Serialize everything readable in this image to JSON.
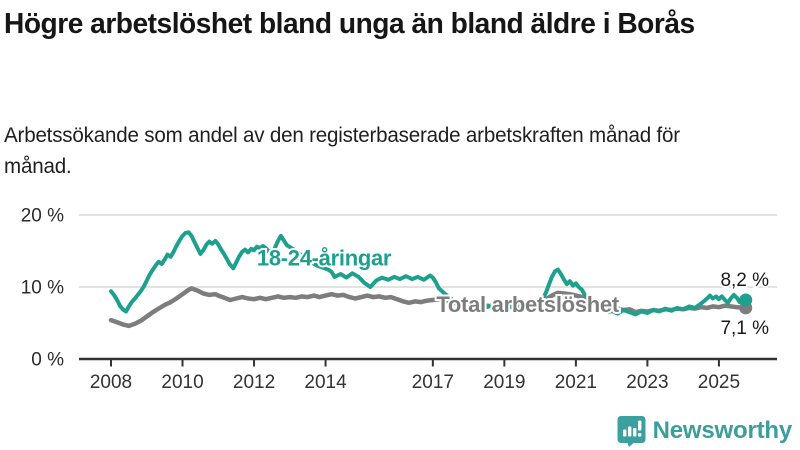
{
  "header": {
    "title": "Högre arbetslöshet bland unga än bland äldre i Borås",
    "subtitle": "Arbetssökande som andel av den registerbaserade arbetskraften månad för månad."
  },
  "footer": {
    "brand": "Newsworthy"
  },
  "colors": {
    "accent_teal": "#1ea08e",
    "total_gray": "#7d7d7d",
    "axis": "#333333",
    "grid": "#d9d9d9",
    "label_text": "#1a1a1a",
    "logo_teal": "#3ba09e"
  },
  "chart_data": {
    "type": "line",
    "unit": "%",
    "grid": "horizontal",
    "x_axis": {
      "ticks": [
        {
          "year": 2008,
          "label": "2008"
        },
        {
          "year": 2010,
          "label": "2010"
        },
        {
          "year": 2012,
          "label": "2012"
        },
        {
          "year": 2014,
          "label": "2014"
        },
        {
          "year": 2017,
          "label": "2017"
        },
        {
          "year": 2019,
          "label": "2019"
        },
        {
          "year": 2021,
          "label": "2021"
        },
        {
          "year": 2023,
          "label": "2023"
        },
        {
          "year": 2025,
          "label": "2025"
        }
      ],
      "range": [
        2008,
        2025.75
      ]
    },
    "y_axis": {
      "ticks": [
        {
          "value": 0,
          "label": "0 %"
        },
        {
          "value": 10,
          "label": "10 %"
        },
        {
          "value": 20,
          "label": "20 %"
        }
      ],
      "range": [
        0,
        20
      ]
    },
    "series": [
      {
        "id": "total",
        "name": "Total arbetslöshet",
        "color": "#7d7d7d",
        "line_width": 4.5,
        "label_anchor": {
          "t": 2017.1,
          "v": 6.5
        },
        "end_label": "7,1 %",
        "end_label_side": "below",
        "end_value": 7.1,
        "points": [
          [
            2008.0,
            5.4
          ],
          [
            2008.17,
            5.1
          ],
          [
            2008.33,
            4.8
          ],
          [
            2008.5,
            4.6
          ],
          [
            2008.67,
            4.9
          ],
          [
            2008.83,
            5.3
          ],
          [
            2009.0,
            5.9
          ],
          [
            2009.17,
            6.5
          ],
          [
            2009.33,
            7.0
          ],
          [
            2009.5,
            7.5
          ],
          [
            2009.67,
            7.9
          ],
          [
            2009.83,
            8.4
          ],
          [
            2010.0,
            9.0
          ],
          [
            2010.17,
            9.6
          ],
          [
            2010.25,
            9.8
          ],
          [
            2010.42,
            9.5
          ],
          [
            2010.58,
            9.1
          ],
          [
            2010.75,
            8.9
          ],
          [
            2010.92,
            9.0
          ],
          [
            2011.0,
            8.8
          ],
          [
            2011.17,
            8.5
          ],
          [
            2011.33,
            8.2
          ],
          [
            2011.5,
            8.4
          ],
          [
            2011.67,
            8.6
          ],
          [
            2011.83,
            8.4
          ],
          [
            2012.0,
            8.3
          ],
          [
            2012.17,
            8.5
          ],
          [
            2012.33,
            8.3
          ],
          [
            2012.5,
            8.5
          ],
          [
            2012.67,
            8.7
          ],
          [
            2012.83,
            8.5
          ],
          [
            2013.0,
            8.6
          ],
          [
            2013.17,
            8.5
          ],
          [
            2013.33,
            8.7
          ],
          [
            2013.5,
            8.6
          ],
          [
            2013.67,
            8.8
          ],
          [
            2013.83,
            8.6
          ],
          [
            2014.0,
            8.8
          ],
          [
            2014.17,
            9.0
          ],
          [
            2014.33,
            8.8
          ],
          [
            2014.5,
            8.9
          ],
          [
            2014.67,
            8.6
          ],
          [
            2014.83,
            8.4
          ],
          [
            2015.0,
            8.6
          ],
          [
            2015.17,
            8.8
          ],
          [
            2015.33,
            8.6
          ],
          [
            2015.5,
            8.7
          ],
          [
            2015.67,
            8.5
          ],
          [
            2015.83,
            8.6
          ],
          [
            2016.0,
            8.3
          ],
          [
            2016.17,
            8.0
          ],
          [
            2016.33,
            7.8
          ],
          [
            2016.5,
            8.0
          ],
          [
            2016.67,
            7.9
          ],
          [
            2016.83,
            8.1
          ],
          [
            2017.0,
            8.2
          ],
          [
            2017.17,
            8.3
          ],
          [
            2017.33,
            8.1
          ],
          [
            2017.5,
            8.0
          ],
          [
            2017.67,
            7.9
          ],
          [
            2017.83,
            7.8
          ],
          [
            2018.0,
            7.7
          ],
          [
            2018.25,
            7.5
          ],
          [
            2018.5,
            7.4
          ],
          [
            2018.75,
            7.3
          ],
          [
            2019.0,
            7.4
          ],
          [
            2019.25,
            7.5
          ],
          [
            2019.5,
            7.4
          ],
          [
            2019.75,
            7.6
          ],
          [
            2020.0,
            7.8
          ],
          [
            2020.17,
            8.3
          ],
          [
            2020.33,
            8.8
          ],
          [
            2020.5,
            9.2
          ],
          [
            2020.67,
            9.1
          ],
          [
            2020.83,
            9.0
          ],
          [
            2021.0,
            8.8
          ],
          [
            2021.17,
            8.6
          ],
          [
            2021.33,
            8.3
          ],
          [
            2021.5,
            8.0
          ],
          [
            2021.67,
            7.7
          ],
          [
            2021.83,
            7.4
          ],
          [
            2022.0,
            7.2
          ],
          [
            2022.17,
            7.0
          ],
          [
            2022.33,
            6.8
          ],
          [
            2022.5,
            6.9
          ],
          [
            2022.67,
            6.5
          ],
          [
            2022.83,
            6.7
          ],
          [
            2023.0,
            6.6
          ],
          [
            2023.17,
            6.8
          ],
          [
            2023.33,
            6.7
          ],
          [
            2023.5,
            6.9
          ],
          [
            2023.67,
            6.8
          ],
          [
            2023.83,
            7.0
          ],
          [
            2024.0,
            6.9
          ],
          [
            2024.17,
            7.1
          ],
          [
            2024.33,
            7.0
          ],
          [
            2024.5,
            7.2
          ],
          [
            2024.67,
            7.1
          ],
          [
            2024.83,
            7.3
          ],
          [
            2025.0,
            7.2
          ],
          [
            2025.17,
            7.4
          ],
          [
            2025.33,
            7.3
          ],
          [
            2025.5,
            7.2
          ],
          [
            2025.75,
            7.1
          ]
        ]
      },
      {
        "id": "youth",
        "name": "18-24-åringar",
        "color": "#1ea08e",
        "line_width": 4,
        "label_anchor": {
          "t": 2012.08,
          "v": 13.0
        },
        "end_label": "8,2 %",
        "end_label_side": "above",
        "end_value": 8.2,
        "points": [
          [
            2008.0,
            9.4
          ],
          [
            2008.08,
            8.9
          ],
          [
            2008.17,
            8.2
          ],
          [
            2008.25,
            7.4
          ],
          [
            2008.33,
            6.9
          ],
          [
            2008.42,
            6.6
          ],
          [
            2008.5,
            7.3
          ],
          [
            2008.58,
            7.9
          ],
          [
            2008.67,
            8.4
          ],
          [
            2008.75,
            8.9
          ],
          [
            2008.83,
            9.4
          ],
          [
            2008.92,
            10.1
          ],
          [
            2009.0,
            10.9
          ],
          [
            2009.08,
            11.7
          ],
          [
            2009.17,
            12.4
          ],
          [
            2009.25,
            13.0
          ],
          [
            2009.33,
            13.5
          ],
          [
            2009.42,
            13.2
          ],
          [
            2009.5,
            13.8
          ],
          [
            2009.58,
            14.5
          ],
          [
            2009.67,
            14.2
          ],
          [
            2009.75,
            14.9
          ],
          [
            2009.83,
            15.7
          ],
          [
            2009.92,
            16.5
          ],
          [
            2010.0,
            17.1
          ],
          [
            2010.08,
            17.5
          ],
          [
            2010.17,
            17.6
          ],
          [
            2010.25,
            17.1
          ],
          [
            2010.33,
            16.3
          ],
          [
            2010.42,
            15.4
          ],
          [
            2010.5,
            14.6
          ],
          [
            2010.58,
            15.1
          ],
          [
            2010.67,
            15.9
          ],
          [
            2010.75,
            16.3
          ],
          [
            2010.83,
            16.0
          ],
          [
            2010.92,
            16.4
          ],
          [
            2011.0,
            15.9
          ],
          [
            2011.08,
            15.2
          ],
          [
            2011.17,
            14.5
          ],
          [
            2011.25,
            13.8
          ],
          [
            2011.33,
            13.1
          ],
          [
            2011.42,
            12.6
          ],
          [
            2011.5,
            13.4
          ],
          [
            2011.58,
            14.2
          ],
          [
            2011.67,
            14.9
          ],
          [
            2011.75,
            15.2
          ],
          [
            2011.83,
            14.8
          ],
          [
            2011.92,
            15.3
          ],
          [
            2012.0,
            15.1
          ],
          [
            2012.08,
            15.6
          ],
          [
            2012.17,
            15.4
          ],
          [
            2012.25,
            15.7
          ],
          [
            2012.33,
            15.4
          ],
          [
            2012.42,
            14.9
          ],
          [
            2012.5,
            14.6
          ],
          [
            2012.58,
            15.4
          ],
          [
            2012.67,
            16.4
          ],
          [
            2012.75,
            17.1
          ],
          [
            2012.83,
            16.5
          ],
          [
            2012.92,
            15.8
          ],
          [
            2013.08,
            15.3
          ],
          [
            2013.25,
            14.7
          ],
          [
            2013.42,
            14.1
          ],
          [
            2013.58,
            13.5
          ],
          [
            2013.75,
            13.0
          ],
          [
            2013.92,
            12.7
          ],
          [
            2014.08,
            12.4
          ],
          [
            2014.17,
            12.1
          ],
          [
            2014.25,
            11.4
          ],
          [
            2014.42,
            11.8
          ],
          [
            2014.58,
            11.3
          ],
          [
            2014.75,
            11.9
          ],
          [
            2014.92,
            11.4
          ],
          [
            2015.08,
            10.6
          ],
          [
            2015.25,
            10.0
          ],
          [
            2015.42,
            10.9
          ],
          [
            2015.58,
            11.3
          ],
          [
            2015.75,
            11.0
          ],
          [
            2015.92,
            11.4
          ],
          [
            2016.08,
            11.1
          ],
          [
            2016.25,
            11.5
          ],
          [
            2016.42,
            11.1
          ],
          [
            2016.58,
            11.4
          ],
          [
            2016.75,
            11.0
          ],
          [
            2016.92,
            11.6
          ],
          [
            2017.0,
            11.3
          ],
          [
            2017.08,
            10.7
          ],
          [
            2017.17,
            9.8
          ],
          [
            2017.33,
            9.1
          ],
          [
            2017.5,
            8.4
          ],
          [
            2017.67,
            7.6
          ],
          [
            2017.83,
            7.0
          ],
          [
            2018.0,
            7.4
          ],
          [
            2018.17,
            7.1
          ],
          [
            2018.33,
            7.5
          ],
          [
            2018.5,
            7.2
          ],
          [
            2018.67,
            7.5
          ],
          [
            2018.83,
            7.2
          ],
          [
            2019.0,
            7.5
          ],
          [
            2019.17,
            7.2
          ],
          [
            2019.33,
            7.4
          ],
          [
            2019.5,
            7.1
          ],
          [
            2019.67,
            7.4
          ],
          [
            2019.83,
            7.3
          ],
          [
            2020.0,
            7.8
          ],
          [
            2020.08,
            8.4
          ],
          [
            2020.17,
            9.3
          ],
          [
            2020.25,
            10.4
          ],
          [
            2020.33,
            11.4
          ],
          [
            2020.42,
            12.2
          ],
          [
            2020.5,
            12.4
          ],
          [
            2020.58,
            11.8
          ],
          [
            2020.67,
            11.0
          ],
          [
            2020.75,
            10.4
          ],
          [
            2020.83,
            10.8
          ],
          [
            2020.92,
            10.2
          ],
          [
            2021.0,
            10.5
          ],
          [
            2021.08,
            10.0
          ],
          [
            2021.17,
            9.6
          ],
          [
            2021.25,
            8.9
          ],
          [
            2021.42,
            8.2
          ],
          [
            2021.58,
            7.5
          ],
          [
            2021.75,
            6.9
          ],
          [
            2021.92,
            6.5
          ],
          [
            2022.0,
            6.7
          ],
          [
            2022.17,
            6.3
          ],
          [
            2022.33,
            6.8
          ],
          [
            2022.5,
            6.5
          ],
          [
            2022.67,
            6.2
          ],
          [
            2022.83,
            6.6
          ],
          [
            2023.0,
            6.4
          ],
          [
            2023.17,
            6.8
          ],
          [
            2023.33,
            6.6
          ],
          [
            2023.5,
            7.0
          ],
          [
            2023.67,
            6.7
          ],
          [
            2023.83,
            7.1
          ],
          [
            2024.0,
            6.9
          ],
          [
            2024.17,
            7.3
          ],
          [
            2024.33,
            7.1
          ],
          [
            2024.5,
            7.7
          ],
          [
            2024.67,
            8.4
          ],
          [
            2024.75,
            8.8
          ],
          [
            2024.83,
            8.4
          ],
          [
            2024.92,
            8.7
          ],
          [
            2025.0,
            8.3
          ],
          [
            2025.08,
            8.7
          ],
          [
            2025.17,
            8.2
          ],
          [
            2025.25,
            7.8
          ],
          [
            2025.33,
            8.4
          ],
          [
            2025.42,
            8.9
          ],
          [
            2025.5,
            8.5
          ],
          [
            2025.58,
            7.9
          ],
          [
            2025.75,
            8.2
          ]
        ]
      }
    ]
  }
}
